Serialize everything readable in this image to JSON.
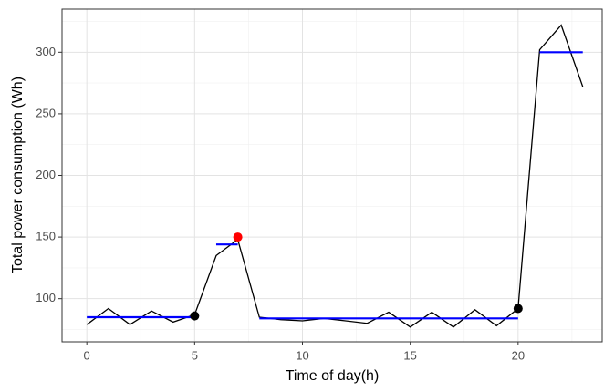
{
  "chart_data": {
    "type": "line",
    "x_label": "Time of day(h)",
    "y_label": "Total power consumption (Wh)",
    "x": [
      0,
      1,
      2,
      3,
      4,
      5,
      6,
      7,
      8,
      9,
      10,
      11,
      12,
      13,
      14,
      15,
      16,
      17,
      18,
      19,
      20,
      21,
      22,
      23
    ],
    "values": [
      79,
      92,
      79,
      90,
      81,
      87,
      135,
      148,
      85,
      83,
      82,
      84,
      82,
      80,
      89,
      77,
      89,
      77,
      91,
      78,
      92,
      302,
      322,
      272
    ],
    "color": "#000000",
    "segments": [
      {
        "x0": 0,
        "x1": 5,
        "y": 85
      },
      {
        "x0": 6,
        "x1": 7,
        "y": 144
      },
      {
        "x0": 8,
        "x1": 20,
        "y": 84
      },
      {
        "x0": 21,
        "x1": 23,
        "y": 300
      }
    ],
    "segment_color": "#0000ff",
    "points": [
      {
        "x": 5,
        "y": 86,
        "color": "#000000"
      },
      {
        "x": 7,
        "y": 150,
        "color": "#ff0000"
      },
      {
        "x": 20,
        "y": 92,
        "color": "#000000"
      }
    ],
    "xlim": [
      -1.15,
      23.9
    ],
    "ylim": [
      65,
      335
    ],
    "xticks": [
      0,
      5,
      10,
      15,
      20
    ],
    "yticks": [
      100,
      150,
      200,
      250,
      300
    ],
    "x_minor_ticks": [
      2.5,
      7.5,
      12.5,
      17.5,
      22.5
    ],
    "y_minor_ticks": [
      75,
      125,
      175,
      225,
      275,
      325
    ],
    "grid": true
  }
}
